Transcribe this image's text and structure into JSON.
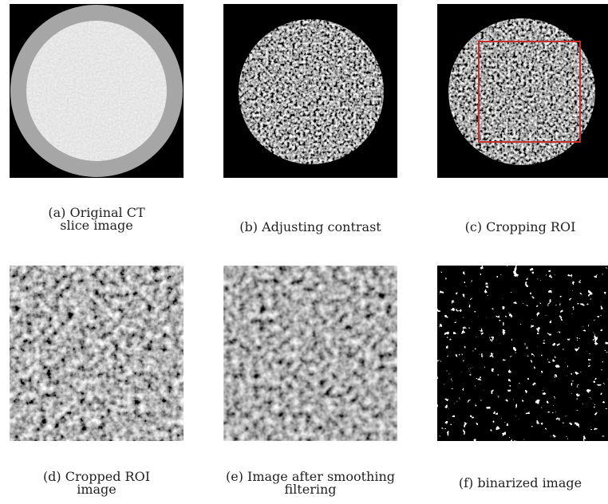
{
  "panels": [
    {
      "caption": [
        "(a) Original CT",
        "slice image"
      ]
    },
    {
      "caption": [
        "(b) Adjusting contrast"
      ]
    },
    {
      "caption": [
        "(c) Cropping ROI"
      ]
    },
    {
      "caption": [
        "(d) Cropped ROI",
        "image"
      ]
    },
    {
      "caption": [
        "(e) Image after smoothing",
        "filtering"
      ]
    },
    {
      "caption": [
        "(f) binarized image"
      ]
    }
  ]
}
